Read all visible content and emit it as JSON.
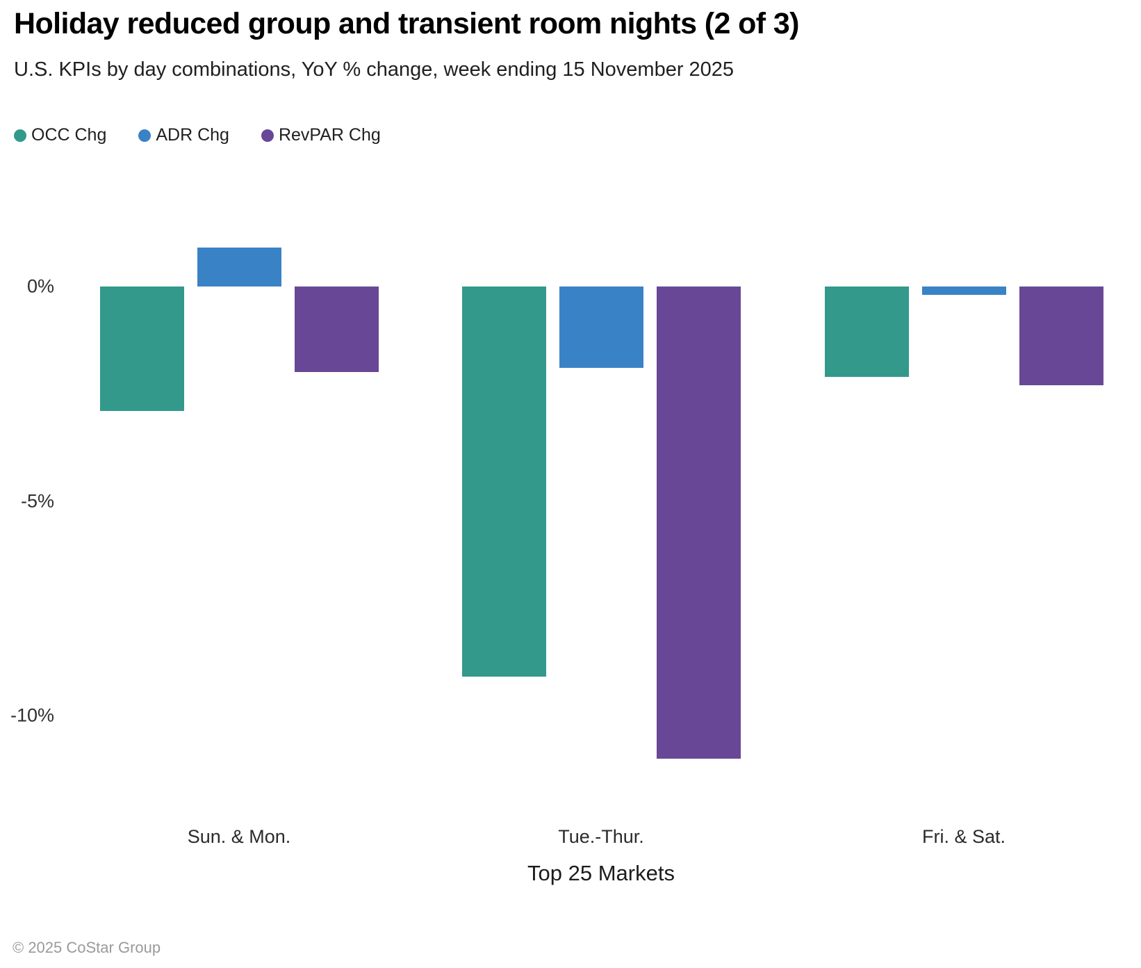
{
  "page": {
    "title": "Holiday reduced group and transient room nights (2 of 3)",
    "subtitle": "U.S. KPIs by day combinations, YoY % change, week ending 15 November 2025",
    "footer": "© 2025 CoStar Group"
  },
  "colors": {
    "occ": "#33998B",
    "adr": "#3A82C6",
    "revpar": "#684796",
    "axis_text": "#2e2e2e",
    "footer_text": "#9a9a9a",
    "background": "#ffffff"
  },
  "chart_data": {
    "type": "bar",
    "title": "Holiday reduced group and transient room nights (2 of 3)",
    "subtitle": "U.S. KPIs by day combinations, YoY % change, week ending 15 November 2025",
    "categories": [
      "Sun. & Mon.",
      "Tue.-Thur.",
      "Fri. & Sat."
    ],
    "series": [
      {
        "name": "OCC Chg",
        "color": "#33998B",
        "values": [
          -2.9,
          -9.1,
          -2.1
        ]
      },
      {
        "name": "ADR Chg",
        "color": "#3A82C6",
        "values": [
          0.9,
          -1.9,
          -0.2
        ]
      },
      {
        "name": "RevPAR Chg",
        "color": "#684796",
        "values": [
          -2.0,
          -11.0,
          -2.3
        ]
      }
    ],
    "xlabel": "Top 25 Markets",
    "ylabel": "",
    "unit": "%",
    "yticks": [
      {
        "label": "0%",
        "value": 0
      },
      {
        "label": "-5%",
        "value": -5
      },
      {
        "label": "-10%",
        "value": -10
      }
    ],
    "ylim": [
      -11.8,
      1.5
    ],
    "grid": false,
    "legend_position": "top-left"
  }
}
